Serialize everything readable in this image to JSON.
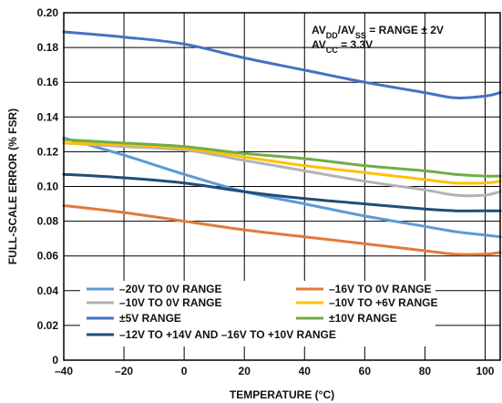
{
  "chart_data": {
    "type": "line",
    "xlabel": "TEMPERATURE (°C)",
    "ylabel": "FULL-SCALE ERROR (% FSR)",
    "xlim": [
      -40,
      105
    ],
    "ylim": [
      0,
      0.2
    ],
    "x_ticks": [
      "–40",
      "–20",
      "0",
      "20",
      "40",
      "60",
      "80",
      "100"
    ],
    "y_ticks": [
      "0",
      "0.02",
      "0.04",
      "0.06",
      "0.08",
      "0.10",
      "0.12",
      "0.14",
      "0.16",
      "0.18",
      "0.20"
    ],
    "grid": true,
    "legend_position": "bottom",
    "annotation": {
      "line1": {
        "a": "AV",
        "a_sub": "DD",
        "b": "/AV",
        "b_sub": "SS",
        "c": " = RANGE ± 2V"
      },
      "line2": {
        "a": "AV",
        "a_sub": "CC",
        "c": " = 3.3V"
      }
    },
    "x": [
      -40,
      -20,
      0,
      20,
      40,
      60,
      80,
      90,
      100,
      105
    ],
    "series": [
      {
        "name": "–20V TO 0V RANGE",
        "color": "#5b9bd5",
        "values": [
          0.128,
          0.118,
          0.107,
          0.097,
          0.09,
          0.083,
          0.077,
          0.074,
          0.072,
          0.071
        ]
      },
      {
        "name": "–16V TO 0V RANGE",
        "color": "#e07b39",
        "values": [
          0.089,
          0.085,
          0.08,
          0.075,
          0.071,
          0.067,
          0.063,
          0.061,
          0.061,
          0.062
        ]
      },
      {
        "name": "–10V TO 0V RANGE",
        "color": "#b3b3b3",
        "values": [
          0.125,
          0.123,
          0.121,
          0.115,
          0.109,
          0.103,
          0.098,
          0.095,
          0.095,
          0.097
        ]
      },
      {
        "name": "–10V TO +6V RANGE",
        "color": "#ffc000",
        "values": [
          0.125,
          0.124,
          0.122,
          0.117,
          0.112,
          0.108,
          0.104,
          0.102,
          0.102,
          0.103
        ]
      },
      {
        "name": "±5V RANGE",
        "color": "#4472c4",
        "values": [
          0.189,
          0.186,
          0.182,
          0.174,
          0.167,
          0.16,
          0.154,
          0.151,
          0.152,
          0.154
        ]
      },
      {
        "name": "±10V RANGE",
        "color": "#70ad47",
        "values": [
          0.127,
          0.125,
          0.123,
          0.119,
          0.116,
          0.112,
          0.109,
          0.107,
          0.106,
          0.106
        ]
      },
      {
        "name": "–12V TO +14V AND –16V TO +10V RANGE",
        "color": "#1f4e79",
        "values": [
          0.107,
          0.105,
          0.102,
          0.097,
          0.093,
          0.09,
          0.087,
          0.086,
          0.086,
          0.086
        ]
      }
    ]
  }
}
